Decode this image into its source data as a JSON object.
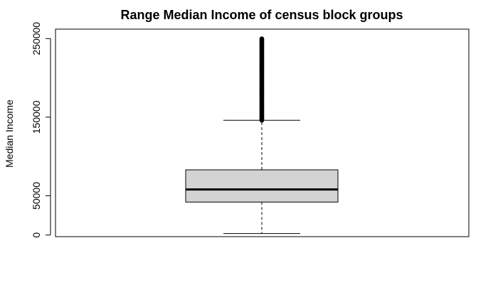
{
  "chart_data": {
    "type": "boxplot",
    "title": "Range Median Income of census block groups",
    "xlabel": "",
    "ylabel": "Median Income",
    "ylim": [
      -2000,
      262000
    ],
    "yticks": [
      0,
      50000,
      150000,
      250000
    ],
    "ytick_labels": [
      "0",
      "50000",
      "150000",
      "250000"
    ],
    "box": {
      "min": 2000,
      "q1": 42000,
      "median": 58000,
      "q3": 83000,
      "whisker_high": 146000,
      "outliers_from": 146000,
      "outliers_to": 250000
    },
    "colors": {
      "box_fill": "#d3d3d3",
      "line": "#000000",
      "background": "#ffffff"
    },
    "grid": false,
    "legend": "none"
  }
}
